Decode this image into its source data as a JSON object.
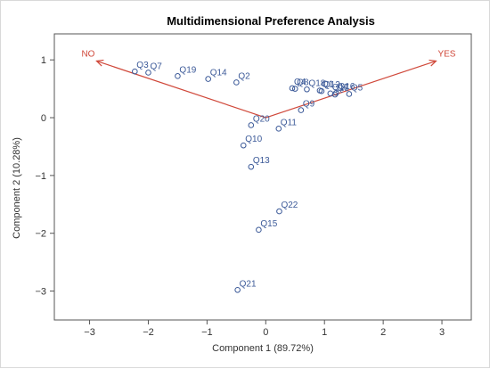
{
  "chart_data": {
    "type": "scatter",
    "title": "Multidimensional Preference Analysis",
    "xlabel": "Component 1 (89.72%)",
    "ylabel": "Component 2 (10.28%)",
    "xlim": [
      -3.6,
      3.5
    ],
    "ylim": [
      -3.5,
      1.45
    ],
    "xticks": [
      -3,
      -2,
      -1,
      0,
      1,
      2,
      3
    ],
    "yticks": [
      -3,
      -2,
      -1,
      0,
      1
    ],
    "grid": false,
    "points": [
      {
        "label": "Q3",
        "x": -2.23,
        "y": 0.8
      },
      {
        "label": "Q7",
        "x": -2.0,
        "y": 0.78
      },
      {
        "label": "Q19",
        "x": -1.5,
        "y": 0.72
      },
      {
        "label": "Q14",
        "x": -0.98,
        "y": 0.67
      },
      {
        "label": "Q2",
        "x": -0.5,
        "y": 0.61
      },
      {
        "label": "Q4",
        "x": 0.45,
        "y": 0.51
      },
      {
        "label": "Q8",
        "x": 0.5,
        "y": 0.5
      },
      {
        "label": "Q18",
        "x": 0.7,
        "y": 0.49
      },
      {
        "label": "Q1",
        "x": 0.92,
        "y": 0.47
      },
      {
        "label": "Q12",
        "x": 0.95,
        "y": 0.46
      },
      {
        "label": "Q5",
        "x": 1.42,
        "y": 0.41
      },
      {
        "label": "Q16",
        "x": 1.2,
        "y": 0.43
      },
      {
        "label": "Q17",
        "x": 1.1,
        "y": 0.42
      },
      {
        "label": "Q6",
        "x": 1.18,
        "y": 0.4
      },
      {
        "label": "Q9",
        "x": 0.6,
        "y": 0.13
      },
      {
        "label": "Q20",
        "x": -0.25,
        "y": -0.13
      },
      {
        "label": "Q11",
        "x": 0.22,
        "y": -0.19
      },
      {
        "label": "Q10",
        "x": -0.38,
        "y": -0.48
      },
      {
        "label": "Q13",
        "x": -0.25,
        "y": -0.85
      },
      {
        "label": "Q22",
        "x": 0.23,
        "y": -1.62
      },
      {
        "label": "Q15",
        "x": -0.12,
        "y": -1.94
      },
      {
        "label": "Q21",
        "x": -0.48,
        "y": -2.98
      }
    ],
    "vectors": [
      {
        "label": "NO",
        "x": -2.88,
        "y": 0.98
      },
      {
        "label": "YES",
        "x": 2.9,
        "y": 0.98
      }
    ],
    "colors": {
      "points": "#3b5998",
      "vectors": "#d0483a",
      "axis": "#555555"
    }
  }
}
